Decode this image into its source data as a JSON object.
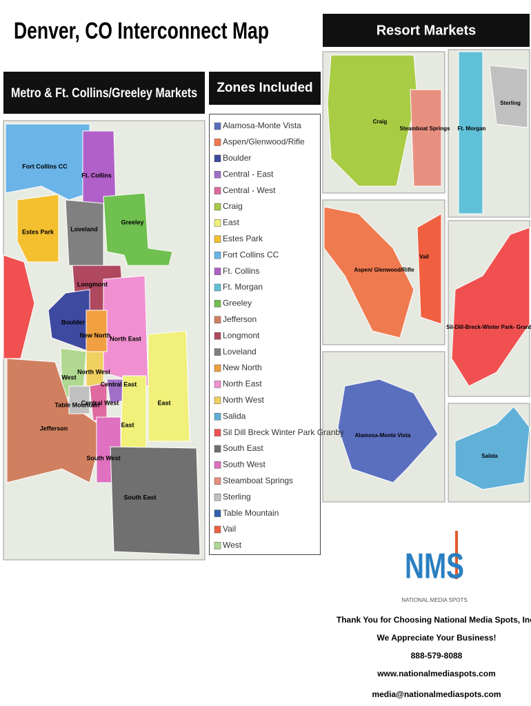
{
  "title": "Denver, CO Interconnect Map",
  "headers": {
    "metro": "Metro & Ft. Collins/Greeley Markets",
    "zones": "Zones Included",
    "resort": "Resort Markets"
  },
  "zones": [
    {
      "name": "Alamosa-Monte Vista",
      "color": "#5b6fbf"
    },
    {
      "name": "Aspen/Glenwood/Rifle",
      "color": "#f07a50"
    },
    {
      "name": "Boulder",
      "color": "#3e4aa0"
    },
    {
      "name": "Central - East",
      "color": "#a070c8"
    },
    {
      "name": "Central - West",
      "color": "#e06aa0"
    },
    {
      "name": "Craig",
      "color": "#a8cc44"
    },
    {
      "name": "East",
      "color": "#f0f07a"
    },
    {
      "name": "Estes Park",
      "color": "#f5c030"
    },
    {
      "name": "Fort Collins CC",
      "color": "#6ab4e8"
    },
    {
      "name": "Ft. Collins",
      "color": "#b060c8"
    },
    {
      "name": "Ft. Morgan",
      "color": "#60c0d8"
    },
    {
      "name": "Greeley",
      "color": "#70c050"
    },
    {
      "name": "Jefferson",
      "color": "#d08060"
    },
    {
      "name": "Longmont",
      "color": "#b04860"
    },
    {
      "name": "Loveland",
      "color": "#808080"
    },
    {
      "name": "New North",
      "color": "#f0a040"
    },
    {
      "name": "North East",
      "color": "#f090d0"
    },
    {
      "name": "North West",
      "color": "#f0d060"
    },
    {
      "name": "Salida",
      "color": "#60b0d8"
    },
    {
      "name": "Sil Dill Breck Winter Park Granby",
      "color": "#f05050"
    },
    {
      "name": "South East",
      "color": "#707070"
    },
    {
      "name": "South West",
      "color": "#e070c0"
    },
    {
      "name": "Steamboat Springs",
      "color": "#e89080"
    },
    {
      "name": "Sterling",
      "color": "#c0c0c0"
    },
    {
      "name": "Table Mountain",
      "color": "#3060b0"
    },
    {
      "name": "Vail",
      "color": "#f06040"
    },
    {
      "name": "West",
      "color": "#b0d890"
    }
  ],
  "map_labels": [
    "Fort Collins CC",
    "Ft. Collins",
    "Estes Park",
    "Loveland",
    "Greeley",
    "Longmont",
    "Boulder",
    "New North",
    "North East",
    "West",
    "North West",
    "Table Mountain",
    "Central West",
    "Central East",
    "East",
    "East",
    "Jefferson",
    "South West",
    "South East"
  ],
  "resort_labels": [
    "Craig",
    "Steamboat Springs",
    "Ft. Morgan",
    "Sterling",
    "Aspen/ Glenwood/Rifle",
    "Vail",
    "Sil-Dill-Breck-Winter Park- Granby",
    "Alamosa-Monte Vista",
    "Salida"
  ],
  "logo": {
    "text": "NMS",
    "subtitle": "NATIONAL MEDIA SPOTS"
  },
  "footer": [
    "Thank You for Choosing National Media Spots, Inc.",
    "We Appreciate Your Business!",
    "888-579-8088",
    "www.nationalmediaspots.com",
    "media@nationalmediaspots.com"
  ]
}
